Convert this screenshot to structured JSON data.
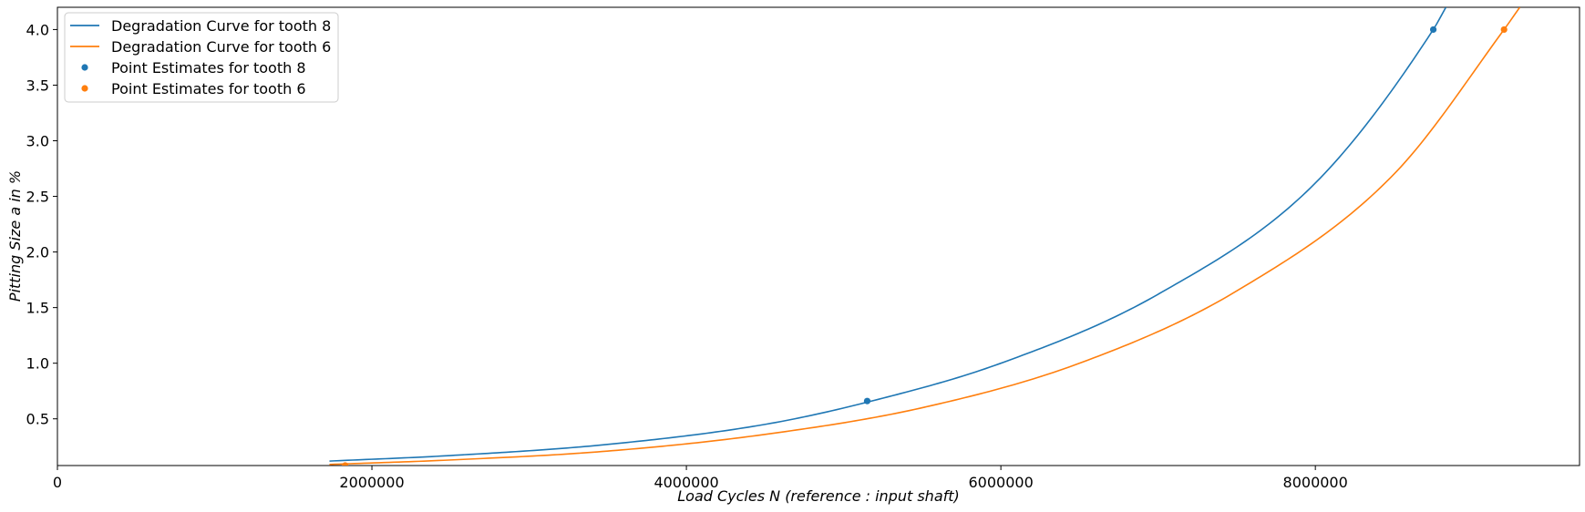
{
  "chart_data": {
    "type": "line",
    "xlabel": "Load Cycles N (reference : input shaft)",
    "ylabel": "Pitting Size a in %",
    "xlim": [
      0,
      9680000
    ],
    "ylim": [
      0.08,
      4.2
    ],
    "xticks": [
      0,
      2000000,
      4000000,
      6000000,
      8000000
    ],
    "xtick_labels": [
      "0",
      "2000000",
      "4000000",
      "6000000",
      "8000000"
    ],
    "yticks": [
      0.5,
      1.0,
      1.5,
      2.0,
      2.5,
      3.0,
      3.5,
      4.0
    ],
    "ytick_labels": [
      "0.5",
      "1.0",
      "1.5",
      "2.0",
      "2.5",
      "3.0",
      "3.5",
      "4.0"
    ],
    "grid": false,
    "legend_position": "top-left",
    "legend": [
      "Degradation Curve for tooth 8",
      "Degradation Curve for tooth 6",
      "Point Estimates for tooth 8",
      "Point Estimates for tooth 6"
    ],
    "series": [
      {
        "name": "Degradation Curve for tooth 8",
        "kind": "line",
        "color": "#1f77b4",
        "x": [
          1730000,
          2500000,
          3500000,
          4500000,
          5150000,
          6000000,
          7000000,
          8000000,
          8750000,
          8830000
        ],
        "y": [
          0.12,
          0.17,
          0.27,
          0.45,
          0.65,
          1.0,
          1.62,
          2.62,
          4.0,
          4.2
        ]
      },
      {
        "name": "Degradation Curve for tooth 6",
        "kind": "line",
        "color": "#ff7f0e",
        "x": [
          1730000,
          2500000,
          3500000,
          4500000,
          5500000,
          6500000,
          7500000,
          8500000,
          9200000,
          9300000
        ],
        "y": [
          0.09,
          0.13,
          0.21,
          0.36,
          0.6,
          1.0,
          1.65,
          2.7,
          4.0,
          4.2
        ]
      },
      {
        "name": "Point Estimates for tooth 8",
        "kind": "scatter",
        "color": "#1f77b4",
        "x": [
          5150000,
          8750000
        ],
        "y": [
          0.66,
          4.0
        ]
      },
      {
        "name": "Point Estimates for tooth 6",
        "kind": "scatter",
        "color": "#ff7f0e",
        "x": [
          1830000,
          9200000
        ],
        "y": [
          0.08,
          4.0
        ]
      }
    ]
  }
}
